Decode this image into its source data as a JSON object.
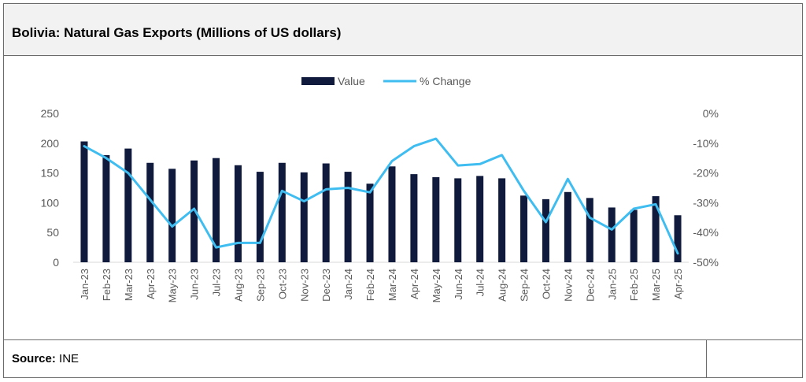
{
  "header": {
    "title": "Bolivia: Natural Gas Exports (Millions of US dollars)"
  },
  "footer": {
    "source_label": "Source:",
    "source_value": " INE"
  },
  "colors": {
    "bar": "#0f1a3c",
    "line": "#3fbdf0",
    "axis_text": "#595959"
  },
  "chart_data": {
    "type": "bar",
    "title": "",
    "categories": [
      "Jan-23",
      "Feb-23",
      "Mar-23",
      "Apr-23",
      "May-23",
      "Jun-23",
      "Jul-23",
      "Aug-23",
      "Sep-23",
      "Oct-23",
      "Nov-23",
      "Dec-23",
      "Jan-24",
      "Feb-24",
      "Mar-24",
      "Apr-24",
      "May-24",
      "Jun-24",
      "Jul-24",
      "Aug-24",
      "Sep-24",
      "Oct-24",
      "Nov-24",
      "Dec-24",
      "Jan-25",
      "Feb-25",
      "Mar-25",
      "Apr-25"
    ],
    "series": [
      {
        "name": "Value",
        "type": "bar",
        "axis": "left",
        "values": [
          203,
          180,
          191,
          167,
          157,
          171,
          175,
          163,
          152,
          167,
          151,
          166,
          152,
          132,
          161,
          148,
          143,
          141,
          145,
          141,
          112,
          106,
          118,
          108,
          92,
          88,
          111,
          79
        ]
      },
      {
        "name": "% Change",
        "type": "line",
        "axis": "right",
        "values": [
          -11,
          -15,
          -20,
          -29,
          -38,
          -32,
          -45,
          -43.5,
          -43.5,
          -26,
          -29.5,
          -25.5,
          -25,
          -26.5,
          -16,
          -11,
          -8.5,
          -17.5,
          -17,
          -14,
          -26,
          -36.5,
          -22,
          -35,
          -39,
          -32,
          -30.5,
          -47
        ]
      }
    ],
    "left_axis": {
      "min": 0,
      "max": 250,
      "ticks": [
        "0",
        "50",
        "100",
        "150",
        "200",
        "250"
      ]
    },
    "right_axis": {
      "min": -50,
      "max": 0,
      "ticks": [
        "-50%",
        "-40%",
        "-30%",
        "-20%",
        "-10%",
        "0%"
      ]
    },
    "legend": {
      "position": "top-center",
      "entries": [
        "Value",
        "% Change"
      ]
    },
    "grid": false
  }
}
